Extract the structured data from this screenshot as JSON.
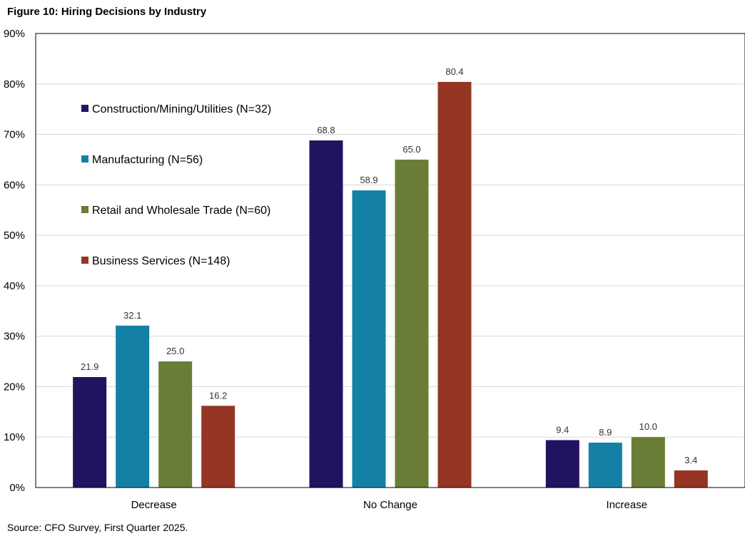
{
  "figure": {
    "title": "Figure 10: Hiring Decisions by Industry",
    "source": "Source: CFO Survey, First Quarter 2025."
  },
  "chart_data": {
    "type": "bar",
    "title": "Figure 10: Hiring Decisions by Industry",
    "xlabel": "",
    "ylabel": "",
    "ylim": [
      0,
      90
    ],
    "yticks": [
      "0%",
      "10%",
      "20%",
      "30%",
      "40%",
      "50%",
      "60%",
      "70%",
      "80%",
      "90%"
    ],
    "grid": true,
    "legend_position": "top-left",
    "categories": [
      "Decrease",
      "No Change",
      "Increase"
    ],
    "series": [
      {
        "name": "Construction/Mining/Utilities (N=32)",
        "color": "#201461",
        "values": [
          21.9,
          68.8,
          9.4
        ]
      },
      {
        "name": "Manufacturing (N=56)",
        "color": "#1480a6",
        "values": [
          32.1,
          58.9,
          8.9
        ]
      },
      {
        "name": "Retail and Wholesale Trade (N=60)",
        "color": "#6a7d36",
        "values": [
          25.0,
          65.0,
          10.0
        ]
      },
      {
        "name": "Business Services (N=148)",
        "color": "#943623",
        "values": [
          16.2,
          80.4,
          3.4
        ]
      }
    ]
  }
}
